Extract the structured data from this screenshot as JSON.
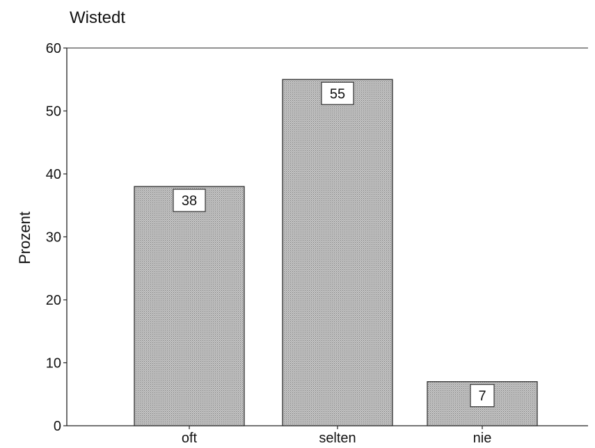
{
  "chart_data": {
    "type": "bar",
    "title": "Wistedt",
    "xlabel": "",
    "ylabel": "Prozent",
    "categories": [
      "oft",
      "selten",
      "nie"
    ],
    "values": [
      38,
      55,
      7
    ],
    "data_labels": [
      "38",
      "55",
      "7"
    ],
    "yticks": [
      "0",
      "10",
      "20",
      "30",
      "40",
      "50",
      "60"
    ],
    "ylim": [
      0,
      60
    ],
    "grid": false,
    "bar_fill": "#b8b8b8"
  }
}
